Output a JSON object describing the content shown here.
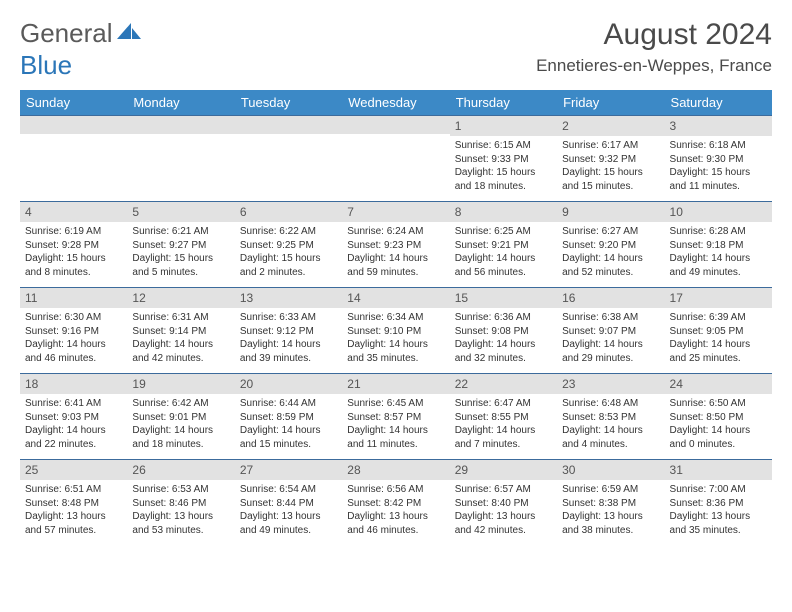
{
  "logo": {
    "general": "General",
    "blue": "Blue"
  },
  "title": "August 2024",
  "location": "Ennetieres-en-Weppes, France",
  "colors": {
    "header_bg": "#3c89c6",
    "header_text": "#ffffff",
    "daynum_bg": "#e2e2e2",
    "row_border": "#3c6b9c",
    "logo_blue": "#2b76b8",
    "text": "#333333"
  },
  "weekdays": [
    "Sunday",
    "Monday",
    "Tuesday",
    "Wednesday",
    "Thursday",
    "Friday",
    "Saturday"
  ],
  "weeks": [
    [
      null,
      null,
      null,
      null,
      {
        "n": "1",
        "sr": "Sunrise: 6:15 AM",
        "ss": "Sunset: 9:33 PM",
        "dl": "Daylight: 15 hours and 18 minutes."
      },
      {
        "n": "2",
        "sr": "Sunrise: 6:17 AM",
        "ss": "Sunset: 9:32 PM",
        "dl": "Daylight: 15 hours and 15 minutes."
      },
      {
        "n": "3",
        "sr": "Sunrise: 6:18 AM",
        "ss": "Sunset: 9:30 PM",
        "dl": "Daylight: 15 hours and 11 minutes."
      }
    ],
    [
      {
        "n": "4",
        "sr": "Sunrise: 6:19 AM",
        "ss": "Sunset: 9:28 PM",
        "dl": "Daylight: 15 hours and 8 minutes."
      },
      {
        "n": "5",
        "sr": "Sunrise: 6:21 AM",
        "ss": "Sunset: 9:27 PM",
        "dl": "Daylight: 15 hours and 5 minutes."
      },
      {
        "n": "6",
        "sr": "Sunrise: 6:22 AM",
        "ss": "Sunset: 9:25 PM",
        "dl": "Daylight: 15 hours and 2 minutes."
      },
      {
        "n": "7",
        "sr": "Sunrise: 6:24 AM",
        "ss": "Sunset: 9:23 PM",
        "dl": "Daylight: 14 hours and 59 minutes."
      },
      {
        "n": "8",
        "sr": "Sunrise: 6:25 AM",
        "ss": "Sunset: 9:21 PM",
        "dl": "Daylight: 14 hours and 56 minutes."
      },
      {
        "n": "9",
        "sr": "Sunrise: 6:27 AM",
        "ss": "Sunset: 9:20 PM",
        "dl": "Daylight: 14 hours and 52 minutes."
      },
      {
        "n": "10",
        "sr": "Sunrise: 6:28 AM",
        "ss": "Sunset: 9:18 PM",
        "dl": "Daylight: 14 hours and 49 minutes."
      }
    ],
    [
      {
        "n": "11",
        "sr": "Sunrise: 6:30 AM",
        "ss": "Sunset: 9:16 PM",
        "dl": "Daylight: 14 hours and 46 minutes."
      },
      {
        "n": "12",
        "sr": "Sunrise: 6:31 AM",
        "ss": "Sunset: 9:14 PM",
        "dl": "Daylight: 14 hours and 42 minutes."
      },
      {
        "n": "13",
        "sr": "Sunrise: 6:33 AM",
        "ss": "Sunset: 9:12 PM",
        "dl": "Daylight: 14 hours and 39 minutes."
      },
      {
        "n": "14",
        "sr": "Sunrise: 6:34 AM",
        "ss": "Sunset: 9:10 PM",
        "dl": "Daylight: 14 hours and 35 minutes."
      },
      {
        "n": "15",
        "sr": "Sunrise: 6:36 AM",
        "ss": "Sunset: 9:08 PM",
        "dl": "Daylight: 14 hours and 32 minutes."
      },
      {
        "n": "16",
        "sr": "Sunrise: 6:38 AM",
        "ss": "Sunset: 9:07 PM",
        "dl": "Daylight: 14 hours and 29 minutes."
      },
      {
        "n": "17",
        "sr": "Sunrise: 6:39 AM",
        "ss": "Sunset: 9:05 PM",
        "dl": "Daylight: 14 hours and 25 minutes."
      }
    ],
    [
      {
        "n": "18",
        "sr": "Sunrise: 6:41 AM",
        "ss": "Sunset: 9:03 PM",
        "dl": "Daylight: 14 hours and 22 minutes."
      },
      {
        "n": "19",
        "sr": "Sunrise: 6:42 AM",
        "ss": "Sunset: 9:01 PM",
        "dl": "Daylight: 14 hours and 18 minutes."
      },
      {
        "n": "20",
        "sr": "Sunrise: 6:44 AM",
        "ss": "Sunset: 8:59 PM",
        "dl": "Daylight: 14 hours and 15 minutes."
      },
      {
        "n": "21",
        "sr": "Sunrise: 6:45 AM",
        "ss": "Sunset: 8:57 PM",
        "dl": "Daylight: 14 hours and 11 minutes."
      },
      {
        "n": "22",
        "sr": "Sunrise: 6:47 AM",
        "ss": "Sunset: 8:55 PM",
        "dl": "Daylight: 14 hours and 7 minutes."
      },
      {
        "n": "23",
        "sr": "Sunrise: 6:48 AM",
        "ss": "Sunset: 8:53 PM",
        "dl": "Daylight: 14 hours and 4 minutes."
      },
      {
        "n": "24",
        "sr": "Sunrise: 6:50 AM",
        "ss": "Sunset: 8:50 PM",
        "dl": "Daylight: 14 hours and 0 minutes."
      }
    ],
    [
      {
        "n": "25",
        "sr": "Sunrise: 6:51 AM",
        "ss": "Sunset: 8:48 PM",
        "dl": "Daylight: 13 hours and 57 minutes."
      },
      {
        "n": "26",
        "sr": "Sunrise: 6:53 AM",
        "ss": "Sunset: 8:46 PM",
        "dl": "Daylight: 13 hours and 53 minutes."
      },
      {
        "n": "27",
        "sr": "Sunrise: 6:54 AM",
        "ss": "Sunset: 8:44 PM",
        "dl": "Daylight: 13 hours and 49 minutes."
      },
      {
        "n": "28",
        "sr": "Sunrise: 6:56 AM",
        "ss": "Sunset: 8:42 PM",
        "dl": "Daylight: 13 hours and 46 minutes."
      },
      {
        "n": "29",
        "sr": "Sunrise: 6:57 AM",
        "ss": "Sunset: 8:40 PM",
        "dl": "Daylight: 13 hours and 42 minutes."
      },
      {
        "n": "30",
        "sr": "Sunrise: 6:59 AM",
        "ss": "Sunset: 8:38 PM",
        "dl": "Daylight: 13 hours and 38 minutes."
      },
      {
        "n": "31",
        "sr": "Sunrise: 7:00 AM",
        "ss": "Sunset: 8:36 PM",
        "dl": "Daylight: 13 hours and 35 minutes."
      }
    ]
  ]
}
